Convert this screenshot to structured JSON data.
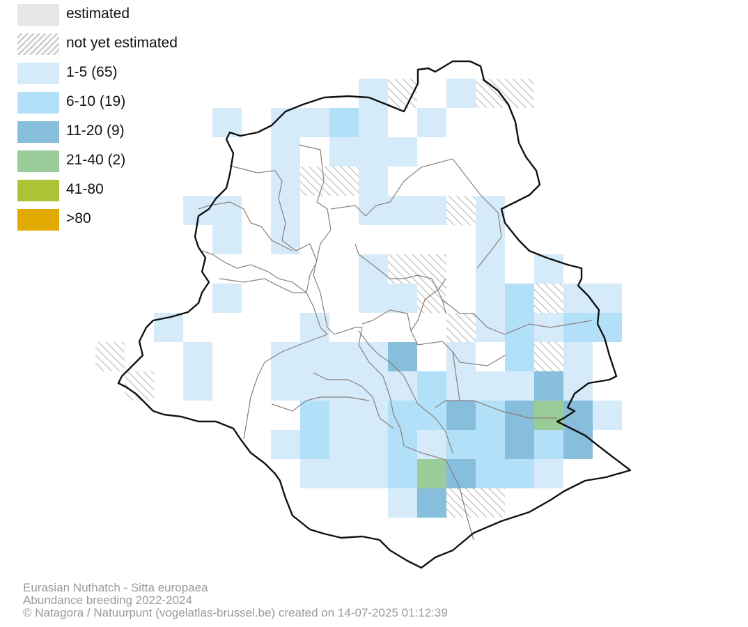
{
  "legend": [
    {
      "key": "estimated",
      "label": "estimated",
      "color": "#e6e6e6",
      "pattern": "solid"
    },
    {
      "key": "not_estimated",
      "label": "not yet estimated",
      "color": "#d0d0d0",
      "pattern": "hatch"
    },
    {
      "key": "c1",
      "label": "1-5 (65)",
      "color": "#d6ebfa",
      "pattern": "solid"
    },
    {
      "key": "c2",
      "label": "6-10 (19)",
      "color": "#b3e0f9",
      "pattern": "solid"
    },
    {
      "key": "c3",
      "label": "11-20 (9)",
      "color": "#86bedc",
      "pattern": "solid"
    },
    {
      "key": "c4",
      "label": "21-40 (2)",
      "color": "#99cc99",
      "pattern": "solid"
    },
    {
      "key": "c5",
      "label": "41-80",
      "color": "#aec236",
      "pattern": "solid"
    },
    {
      "key": "c6",
      "label": ">80",
      "color": "#e0aa00",
      "pattern": "solid"
    }
  ],
  "caption": {
    "species": "Eurasian Nuthatch - Sitta europaea",
    "subtitle": "Abundance breeding 2022-2024",
    "credit": "© Natagora / Natuurpunt (vogelatlas-brussel.be) created on 14-07-2025 01:12:39"
  },
  "map": {
    "grid_origin": "col 0 = x 137, row 0 = y 113, cell 42px",
    "cells": [
      [
        9,
        0,
        "c1"
      ],
      [
        10,
        0,
        "not_estimated"
      ],
      [
        12,
        0,
        "c1"
      ],
      [
        13,
        0,
        "not_estimated"
      ],
      [
        14,
        0,
        "not_estimated"
      ],
      [
        4,
        1,
        "c1"
      ],
      [
        6,
        1,
        "c1"
      ],
      [
        7,
        1,
        "c1"
      ],
      [
        8,
        1,
        "c2"
      ],
      [
        9,
        1,
        "c1"
      ],
      [
        11,
        1,
        "c1"
      ],
      [
        6,
        2,
        "c1"
      ],
      [
        8,
        2,
        "c1"
      ],
      [
        9,
        2,
        "c1"
      ],
      [
        10,
        2,
        "c1"
      ],
      [
        6,
        3,
        "c1"
      ],
      [
        7,
        3,
        "not_estimated"
      ],
      [
        8,
        3,
        "not_estimated"
      ],
      [
        9,
        3,
        "c1"
      ],
      [
        3,
        4,
        "c1"
      ],
      [
        4,
        4,
        "c1"
      ],
      [
        6,
        4,
        "c1"
      ],
      [
        9,
        4,
        "c1"
      ],
      [
        10,
        4,
        "c1"
      ],
      [
        11,
        4,
        "c1"
      ],
      [
        12,
        4,
        "not_estimated"
      ],
      [
        13,
        4,
        "c1"
      ],
      [
        4,
        5,
        "c1"
      ],
      [
        6,
        5,
        "c1"
      ],
      [
        13,
        5,
        "c1"
      ],
      [
        9,
        6,
        "c1"
      ],
      [
        10,
        6,
        "not_estimated"
      ],
      [
        11,
        6,
        "not_estimated"
      ],
      [
        13,
        6,
        "c1"
      ],
      [
        15,
        6,
        "c1"
      ],
      [
        4,
        7,
        "c1"
      ],
      [
        9,
        7,
        "c1"
      ],
      [
        10,
        7,
        "c1"
      ],
      [
        11,
        7,
        "not_estimated"
      ],
      [
        13,
        7,
        "c1"
      ],
      [
        14,
        7,
        "c2"
      ],
      [
        15,
        7,
        "not_estimated"
      ],
      [
        16,
        7,
        "c1"
      ],
      [
        17,
        7,
        "c1"
      ],
      [
        2,
        8,
        "c1"
      ],
      [
        7,
        8,
        "c1"
      ],
      [
        12,
        8,
        "not_estimated"
      ],
      [
        13,
        8,
        "c1"
      ],
      [
        14,
        8,
        "c2"
      ],
      [
        15,
        8,
        "c1"
      ],
      [
        16,
        8,
        "c2"
      ],
      [
        17,
        8,
        "c2"
      ],
      [
        0,
        9,
        "not_estimated"
      ],
      [
        3,
        9,
        "c1"
      ],
      [
        6,
        9,
        "c1"
      ],
      [
        7,
        9,
        "c1"
      ],
      [
        8,
        9,
        "c1"
      ],
      [
        9,
        9,
        "c1"
      ],
      [
        10,
        9,
        "c3"
      ],
      [
        12,
        9,
        "c1"
      ],
      [
        14,
        9,
        "c2"
      ],
      [
        15,
        9,
        "not_estimated"
      ],
      [
        16,
        9,
        "c1"
      ],
      [
        1,
        10,
        "not_estimated"
      ],
      [
        3,
        10,
        "c1"
      ],
      [
        6,
        10,
        "c1"
      ],
      [
        7,
        10,
        "c1"
      ],
      [
        8,
        10,
        "c1"
      ],
      [
        9,
        10,
        "c1"
      ],
      [
        10,
        10,
        "c1"
      ],
      [
        11,
        10,
        "c2"
      ],
      [
        12,
        10,
        "c1"
      ],
      [
        13,
        10,
        "c1"
      ],
      [
        14,
        10,
        "c1"
      ],
      [
        15,
        10,
        "c3"
      ],
      [
        16,
        10,
        "c1"
      ],
      [
        7,
        11,
        "c2"
      ],
      [
        8,
        11,
        "c1"
      ],
      [
        9,
        11,
        "c1"
      ],
      [
        10,
        11,
        "c2"
      ],
      [
        11,
        11,
        "c2"
      ],
      [
        12,
        11,
        "c3"
      ],
      [
        13,
        11,
        "c2"
      ],
      [
        14,
        11,
        "c3"
      ],
      [
        15,
        11,
        "c4"
      ],
      [
        16,
        11,
        "c3"
      ],
      [
        17,
        11,
        "c1"
      ],
      [
        6,
        12,
        "c1"
      ],
      [
        7,
        12,
        "c2"
      ],
      [
        8,
        12,
        "c1"
      ],
      [
        9,
        12,
        "c1"
      ],
      [
        10,
        12,
        "c2"
      ],
      [
        11,
        12,
        "c1"
      ],
      [
        12,
        12,
        "c2"
      ],
      [
        13,
        12,
        "c2"
      ],
      [
        14,
        12,
        "c3"
      ],
      [
        15,
        12,
        "c2"
      ],
      [
        16,
        12,
        "c3"
      ],
      [
        7,
        13,
        "c1"
      ],
      [
        8,
        13,
        "c1"
      ],
      [
        9,
        13,
        "c1"
      ],
      [
        10,
        13,
        "c2"
      ],
      [
        11,
        13,
        "c4"
      ],
      [
        12,
        13,
        "c3"
      ],
      [
        13,
        13,
        "c2"
      ],
      [
        14,
        13,
        "c2"
      ],
      [
        15,
        13,
        "c1"
      ],
      [
        10,
        14,
        "c1"
      ],
      [
        11,
        14,
        "c3"
      ],
      [
        12,
        14,
        "not_estimated"
      ],
      [
        13,
        14,
        "not_estimated"
      ]
    ]
  }
}
